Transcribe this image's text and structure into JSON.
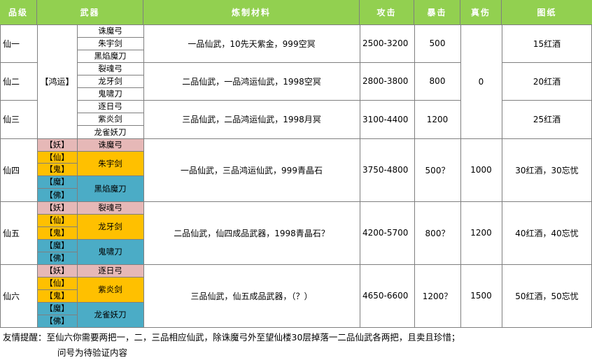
{
  "headers": [
    "品级",
    "武器",
    "炼制材料",
    "攻击",
    "暴击",
    "真伤",
    "图纸"
  ],
  "colors": {
    "header_bg": "#92d050",
    "yao": "#e6b8b7",
    "xian_gui": "#ffc000",
    "mo_fo": "#4bacc6",
    "grid": "#7f7f7f"
  },
  "group_label": "【鸿运】",
  "zhen_shang_shared": "0",
  "rows": [
    {
      "grade": "仙一",
      "weapons": [
        "诛魔弓",
        "朱宇剑",
        "黑焰魔刀"
      ],
      "material": "一品仙武，10先天紫金，999空冥",
      "attack": "2500-3200",
      "crit": "500",
      "blueprint": "15红酒"
    },
    {
      "grade": "仙二",
      "weapons": [
        "裂魂弓",
        "龙牙剑",
        "鬼啸刀"
      ],
      "material": "二品仙武，一品鸿运仙武，1998空冥",
      "attack": "2800-3800",
      "crit": "800",
      "blueprint": "20红酒"
    },
    {
      "grade": "仙三",
      "weapons": [
        "逐日弓",
        "紫炎剑",
        "龙雀妖刀"
      ],
      "material": "三品仙武，二品鸿运仙武，1998月冥",
      "attack": "3100-4400",
      "crit": "1200",
      "blueprint": "25红酒"
    },
    {
      "grade": "仙四",
      "tags": [
        "【妖】",
        "【仙】",
        "【鬼】",
        "【魔】",
        "【佛】"
      ],
      "weapons": [
        "诛魔弓",
        "朱宇剑",
        "黑焰魔刀"
      ],
      "material": "一品仙武，三品鸿运仙武，999青晶石",
      "attack": "3750-4800",
      "crit": "500？",
      "truedmg": "1000",
      "blueprint": "30红酒，30忘忧"
    },
    {
      "grade": "仙五",
      "tags": [
        "【妖】",
        "【仙】",
        "【鬼】",
        "【魔】",
        "【佛】"
      ],
      "weapons": [
        "裂魂弓",
        "龙牙剑",
        "鬼啸刀"
      ],
      "material": "二品仙武，仙四成品武器，1998青晶石？",
      "attack": "4200-5700",
      "crit": "800？",
      "truedmg": "1200",
      "blueprint": "40红酒，40忘忧"
    },
    {
      "grade": "仙六",
      "tags": [
        "【妖】",
        "【仙】",
        "【鬼】",
        "【魔】",
        "【佛】"
      ],
      "weapons": [
        "逐日弓",
        "紫炎剑",
        "龙雀妖刀"
      ],
      "material": "三品仙武，仙五成品武器，（？）",
      "attack": "4650-6600",
      "crit": "1200？",
      "truedmg": "1500",
      "blueprint": "50红酒，50忘忧"
    }
  ],
  "footer": {
    "line1": "友情提醒：至仙六你需要两把一，二，三品相应仙武，除诛魔弓外至望仙楼30层掉落一二品仙武各两把，且卖且珍惜；",
    "line2": "问号为待验证内容"
  }
}
